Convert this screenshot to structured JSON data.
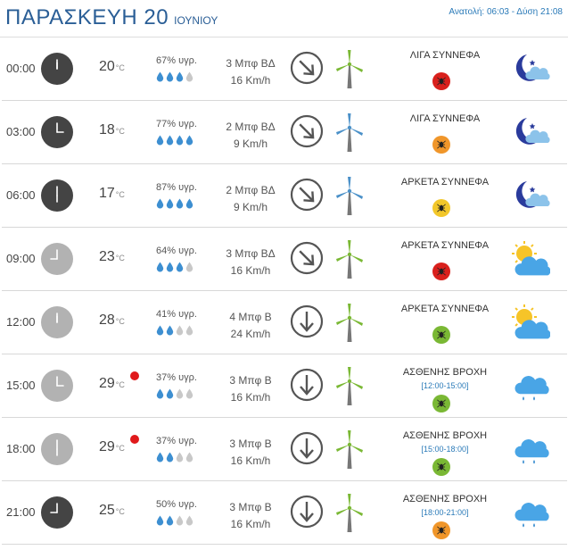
{
  "header": {
    "day": "ΠΑΡΑΣΚΕΥΗ 20",
    "month": "ΙΟΥΝΙΟΥ",
    "sun_times": "Ανατολή: 06:03 - Δύση 21:08"
  },
  "temp_unit": "°C",
  "rows": [
    {
      "time": "00:00",
      "temp": "20",
      "humidity": "67% υγρ.",
      "drops": 3,
      "wind_bf": "3 Μπφ ΒΔ",
      "wind_kmh": "16 Km/h",
      "wind_dir": "NW",
      "condition": "ΛΙΓΑ ΣΥΝΝΕΦΑ",
      "period": "",
      "uv_color": "#d9201c",
      "mill_color": "#7ab834",
      "clock": "dark",
      "rain_dot": false,
      "weather_icon": "moon-cloud-icon"
    },
    {
      "time": "03:00",
      "temp": "18",
      "humidity": "77% υγρ.",
      "drops": 4,
      "wind_bf": "2 Μπφ ΒΔ",
      "wind_kmh": "9 Km/h",
      "wind_dir": "NW",
      "condition": "ΛΙΓΑ ΣΥΝΝΕΦΑ",
      "period": "",
      "uv_color": "#f0962a",
      "mill_color": "#4a90c8",
      "clock": "dark",
      "rain_dot": false,
      "weather_icon": "moon-cloud-icon"
    },
    {
      "time": "06:00",
      "temp": "17",
      "humidity": "87% υγρ.",
      "drops": 4,
      "wind_bf": "2 Μπφ ΒΔ",
      "wind_kmh": "9 Km/h",
      "wind_dir": "NW",
      "condition": "ΑΡΚΕΤΑ ΣΥΝΝΕΦΑ",
      "period": "",
      "uv_color": "#f2c72a",
      "mill_color": "#4a90c8",
      "clock": "dark",
      "rain_dot": false,
      "weather_icon": "moon-cloud-icon"
    },
    {
      "time": "09:00",
      "temp": "23",
      "humidity": "64% υγρ.",
      "drops": 3,
      "wind_bf": "3 Μπφ ΒΔ",
      "wind_kmh": "16 Km/h",
      "wind_dir": "NW",
      "condition": "ΑΡΚΕΤΑ ΣΥΝΝΕΦΑ",
      "period": "",
      "uv_color": "#d9201c",
      "mill_color": "#7ab834",
      "clock": "light",
      "rain_dot": false,
      "weather_icon": "sun-cloud-icon"
    },
    {
      "time": "12:00",
      "temp": "28",
      "humidity": "41% υγρ.",
      "drops": 2,
      "wind_bf": "4 Μπφ Β",
      "wind_kmh": "24 Km/h",
      "wind_dir": "N",
      "condition": "ΑΡΚΕΤΑ ΣΥΝΝΕΦΑ",
      "period": "",
      "uv_color": "#7ab834",
      "mill_color": "#7ab834",
      "clock": "light",
      "rain_dot": false,
      "weather_icon": "sun-cloud-icon"
    },
    {
      "time": "15:00",
      "temp": "29",
      "humidity": "37% υγρ.",
      "drops": 2,
      "wind_bf": "3 Μπφ Β",
      "wind_kmh": "16 Km/h",
      "wind_dir": "N",
      "condition": "ΑΣΘΕΝΗΣ ΒΡΟΧΗ",
      "period": "[12:00-15:00]",
      "uv_color": "#7ab834",
      "mill_color": "#7ab834",
      "clock": "light",
      "rain_dot": true,
      "weather_icon": "rain-cloud-icon"
    },
    {
      "time": "18:00",
      "temp": "29",
      "humidity": "37% υγρ.",
      "drops": 2,
      "wind_bf": "3 Μπφ Β",
      "wind_kmh": "16 Km/h",
      "wind_dir": "N",
      "condition": "ΑΣΘΕΝΗΣ ΒΡΟΧΗ",
      "period": "[15:00-18:00]",
      "uv_color": "#7ab834",
      "mill_color": "#7ab834",
      "clock": "light",
      "rain_dot": true,
      "weather_icon": "rain-cloud-icon"
    },
    {
      "time": "21:00",
      "temp": "25",
      "humidity": "50% υγρ.",
      "drops": 2,
      "wind_bf": "3 Μπφ Β",
      "wind_kmh": "16 Km/h",
      "wind_dir": "N",
      "condition": "ΑΣΘΕΝΗΣ ΒΡΟΧΗ",
      "period": "[18:00-21:00]",
      "uv_color": "#f0962a",
      "mill_color": "#7ab834",
      "clock": "dark",
      "rain_dot": false,
      "weather_icon": "rain-cloud-icon"
    }
  ]
}
